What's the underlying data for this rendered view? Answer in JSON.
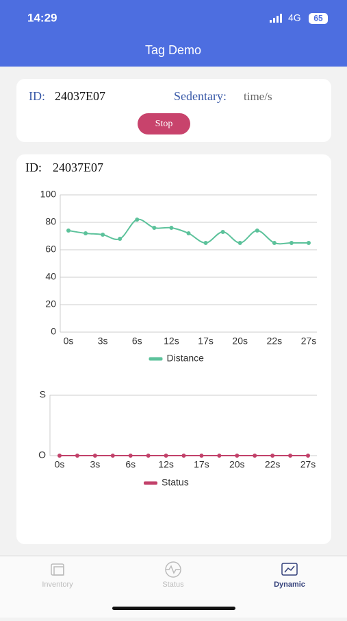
{
  "status_bar": {
    "time": "14:29",
    "network": "4G",
    "battery": "65"
  },
  "header": {
    "title": "Tag Demo"
  },
  "control_card": {
    "id_label": "ID:",
    "id_value": "24037E07",
    "sedentary_label": "Sedentary:",
    "sedentary_unit": "time/s",
    "button": "Stop"
  },
  "chart_card": {
    "id_label": "ID:",
    "id_value": "24037E07"
  },
  "chart_data": [
    {
      "type": "line",
      "smooth": true,
      "categories": [
        "0s",
        null,
        "3s",
        null,
        "6s",
        null,
        "12s",
        null,
        "17s",
        null,
        "20s",
        null,
        "22s",
        null,
        "27s"
      ],
      "series": [
        {
          "name": "Distance",
          "color": "#5cc29b",
          "values": [
            74,
            72,
            71,
            68,
            82,
            76,
            76,
            72,
            65,
            73,
            65,
            74,
            65,
            65,
            65
          ]
        }
      ],
      "ylim": [
        0,
        100
      ],
      "yticks": [
        0,
        20,
        40,
        60,
        80,
        100
      ],
      "grid": true
    },
    {
      "type": "line",
      "smooth": false,
      "categories": [
        "0s",
        null,
        "3s",
        null,
        "6s",
        null,
        "12s",
        null,
        "17s",
        null,
        "20s",
        null,
        "22s",
        null,
        "27s"
      ],
      "series": [
        {
          "name": "Status",
          "color": "#c2416a",
          "values": [
            0,
            0,
            0,
            0,
            0,
            0,
            0,
            0,
            0,
            0,
            0,
            0,
            0,
            0,
            0
          ]
        }
      ],
      "ylim": [
        0,
        1
      ],
      "yticks": [
        {
          "value": 0,
          "label": "O"
        },
        {
          "value": 1,
          "label": "S"
        }
      ],
      "grid": true
    }
  ],
  "tab_bar": {
    "tabs": [
      "Inventory",
      "Status",
      "Dynamic"
    ]
  }
}
